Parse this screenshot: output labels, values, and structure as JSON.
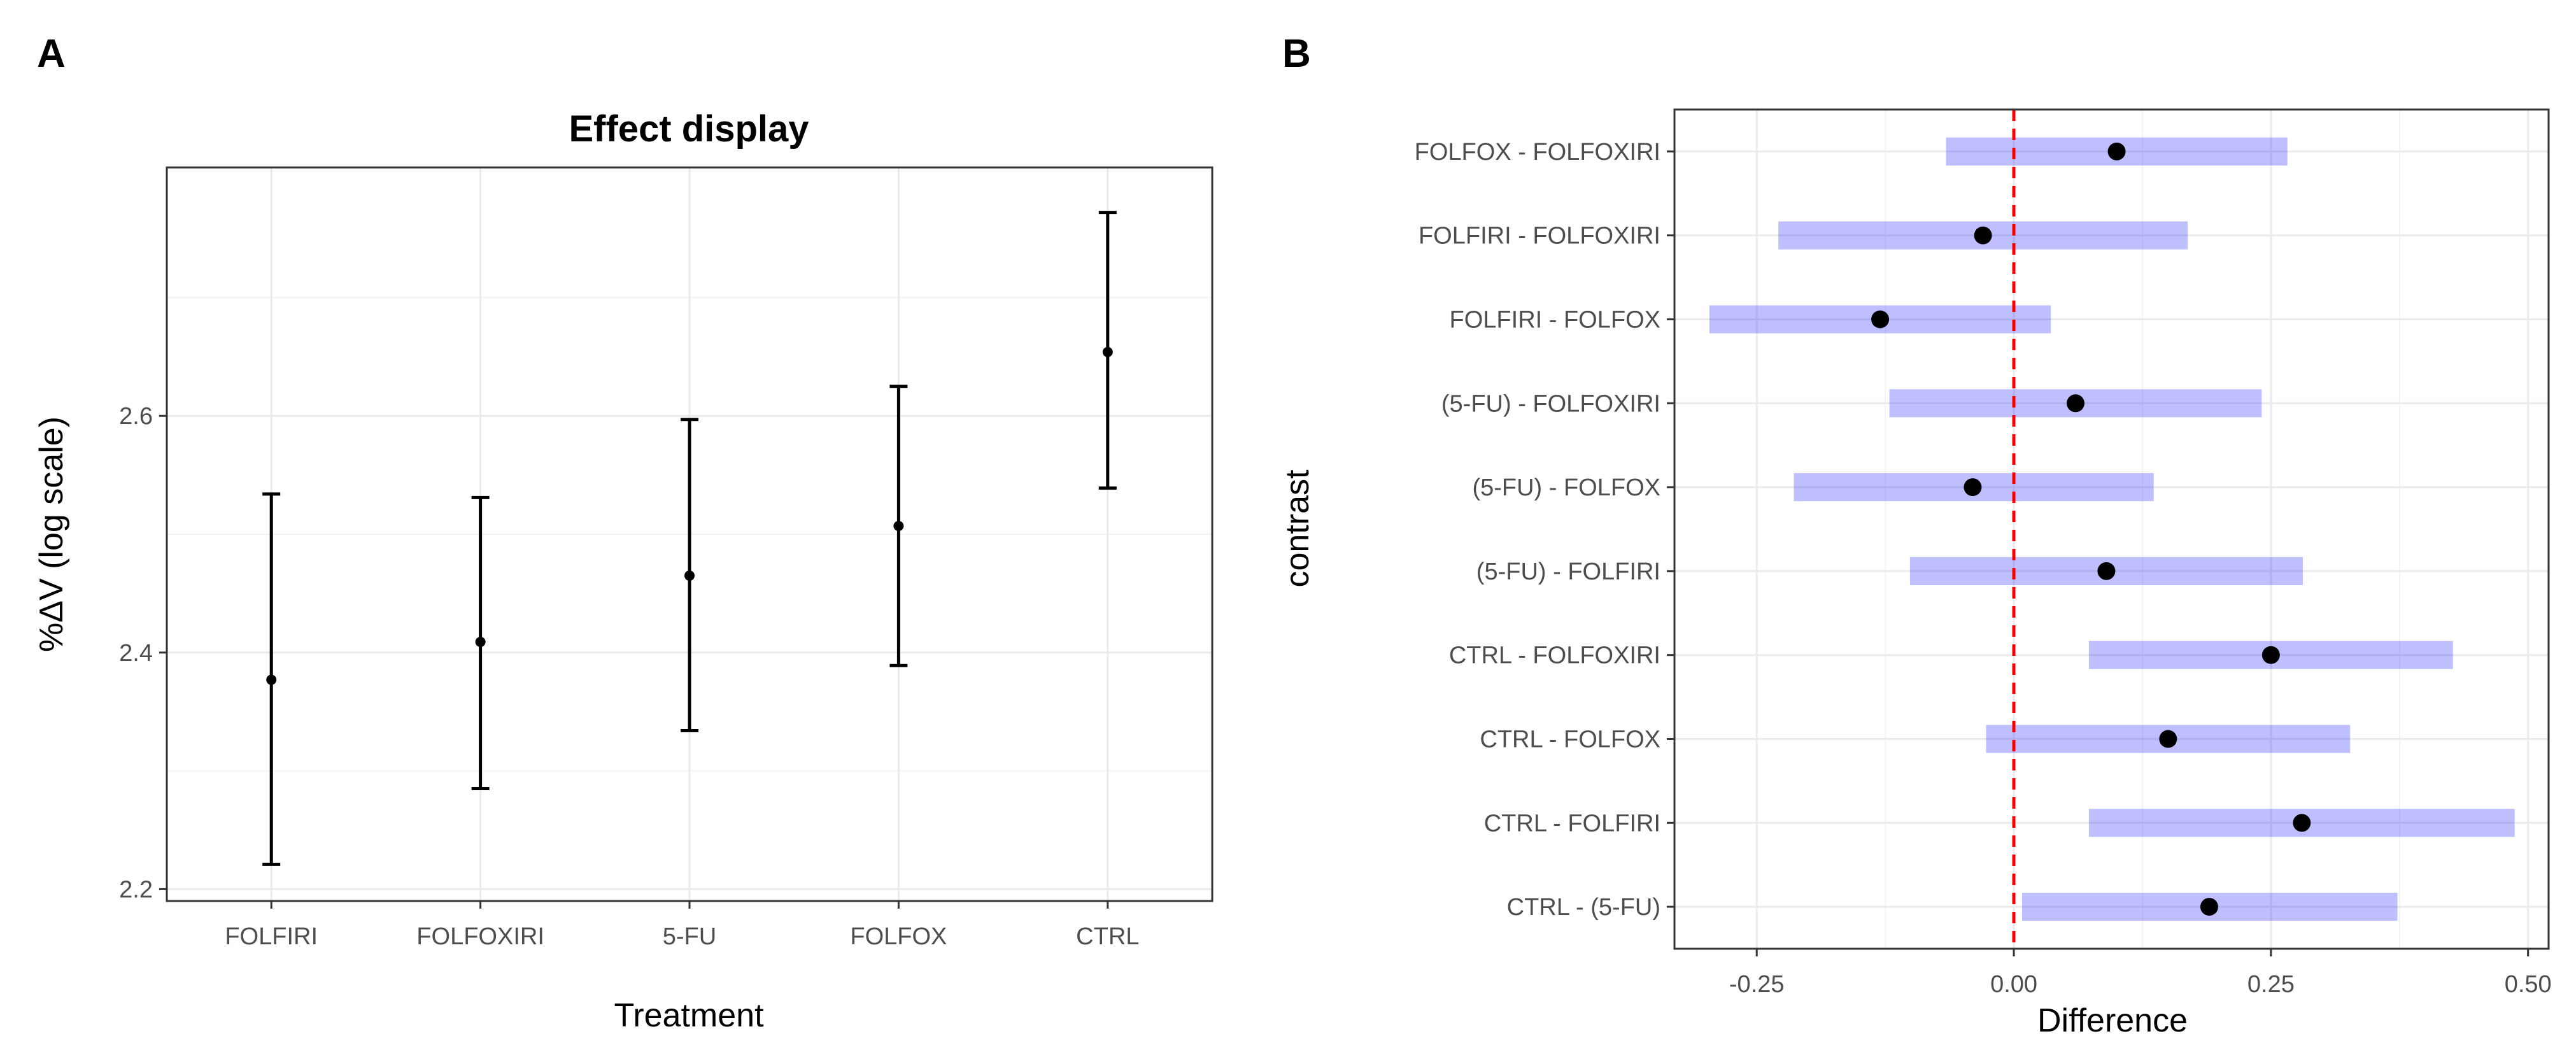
{
  "panels": {
    "a": {
      "letter": "A"
    },
    "b": {
      "letter": "B"
    }
  },
  "chart_data": [
    {
      "id": "A",
      "type": "errorbar",
      "title": "Effect display",
      "xlabel": "Treatment",
      "ylabel": "%ΔV (log scale)",
      "categories": [
        "FOLFIRI",
        "FOLFOXIRI",
        "5-FU",
        "FOLFOX",
        "CTRL"
      ],
      "estimate": [
        2.377,
        2.409,
        2.465,
        2.507,
        2.654
      ],
      "lower": [
        2.221,
        2.285,
        2.334,
        2.389,
        2.539
      ],
      "upper": [
        2.534,
        2.531,
        2.597,
        2.625,
        2.772
      ],
      "ylim": [
        2.19,
        2.81
      ],
      "yticks": [
        2.2,
        2.4,
        2.6
      ],
      "ytick_labels": [
        "2.2",
        "2.4",
        "2.6"
      ],
      "grid": true
    },
    {
      "id": "B",
      "type": "forest",
      "xlabel": "Difference",
      "ylabel": "contrast",
      "contrasts": [
        "FOLFOX - FOLFOXIRI",
        "FOLFIRI - FOLFOXIRI",
        "FOLFIRI - FOLFOX",
        "(5-FU) - FOLFOXIRI",
        "(5-FU) - FOLFOX",
        "(5-FU) - FOLFIRI",
        "CTRL - FOLFOXIRI",
        "CTRL - FOLFOX",
        "CTRL - FOLFIRI",
        "CTRL - (5-FU)"
      ],
      "estimate": [
        0.1,
        -0.03,
        -0.13,
        0.06,
        -0.04,
        0.09,
        0.25,
        0.15,
        0.28,
        0.19
      ],
      "lower": [
        -0.066,
        -0.229,
        -0.296,
        -0.121,
        -0.214,
        -0.101,
        0.073,
        -0.027,
        0.073,
        0.008
      ],
      "upper": [
        0.266,
        0.169,
        0.036,
        0.241,
        0.136,
        0.281,
        0.427,
        0.327,
        0.487,
        0.373
      ],
      "xlim": [
        -0.33,
        0.52
      ],
      "xticks": [
        -0.25,
        0.0,
        0.25,
        0.5
      ],
      "xtick_labels": [
        "-0.25",
        "0.00",
        "0.25",
        "0.50"
      ],
      "reference_line": 0,
      "band_color": "#0000ff",
      "reference_color": "#ff0000",
      "grid": true
    }
  ]
}
